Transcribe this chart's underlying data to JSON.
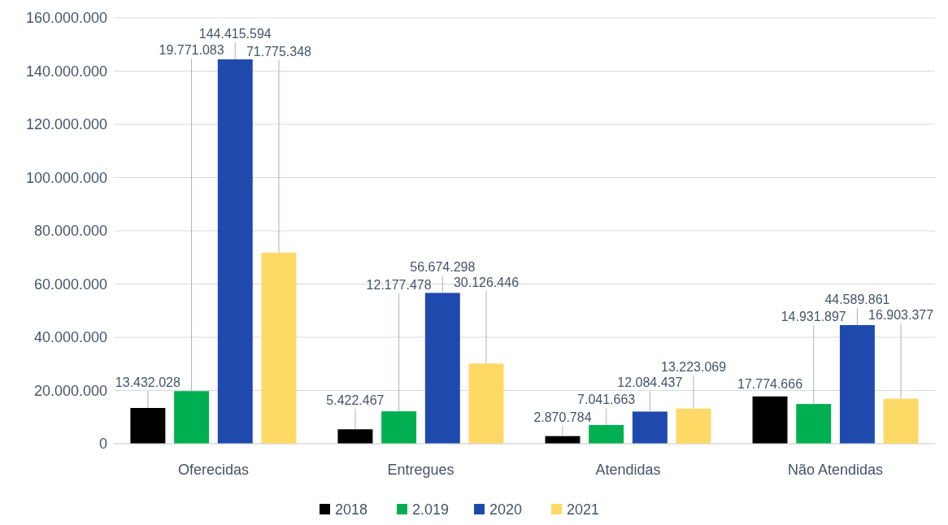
{
  "chart_data": {
    "type": "bar",
    "categories": [
      "Oferecidas",
      "Entregues",
      "Atendidas",
      "Não Atendidas"
    ],
    "series": [
      {
        "name": "2018",
        "color": "#000000",
        "values": [
          13432028,
          5422467,
          2870784,
          17774666
        ],
        "value_labels": [
          "13.432.028",
          "5.422.467",
          "2.870.784",
          "17.774.666"
        ]
      },
      {
        "name": "2.019",
        "color": "#00b050",
        "values": [
          19771083,
          12177478,
          7041663,
          14931897
        ],
        "value_labels": [
          "19.771.083",
          "12.177.478",
          "7.041.663",
          "14.931.897"
        ]
      },
      {
        "name": "2020",
        "color": "#1f4aad",
        "values": [
          144415594,
          56674298,
          12084437,
          44589861
        ],
        "value_labels": [
          "144.415.594",
          "56.674.298",
          "12.084.437",
          "44.589.861"
        ]
      },
      {
        "name": "2021",
        "color": "#ffd966",
        "values": [
          71775348,
          30126446,
          13223069,
          16903377
        ],
        "value_labels": [
          "71.775.348",
          "30.126.446",
          "13.223.069",
          "16.903.377"
        ]
      }
    ],
    "ylim": [
      0,
      160000000
    ],
    "yticks": [
      {
        "value": 0,
        "label": "0"
      },
      {
        "value": 20000000,
        "label": "20.000.000"
      },
      {
        "value": 40000000,
        "label": "40.000.000"
      },
      {
        "value": 60000000,
        "label": "60.000.000"
      },
      {
        "value": 80000000,
        "label": "80.000.000"
      },
      {
        "value": 100000000,
        "label": "100.000.000"
      },
      {
        "value": 120000000,
        "label": "120.000.000"
      },
      {
        "value": 140000000,
        "label": "140.000.000"
      },
      {
        "value": 160000000,
        "label": "160.000.000"
      }
    ],
    "grid": "y",
    "legend": "bottom"
  }
}
